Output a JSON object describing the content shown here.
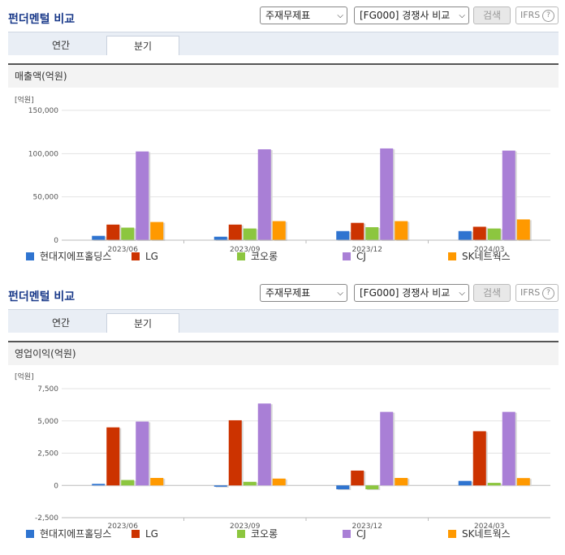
{
  "panels": [
    {
      "title": "펀더멘털 비교",
      "report_select": "주재무제표",
      "compare_select": "[FG000] 경쟁사 비교",
      "search_label": "검색",
      "ifrs_label": "IFRS",
      "help_glyph": "?",
      "tabs": {
        "annual": "연간",
        "quarter": "분기"
      },
      "section_title": "매출액(억원)"
    },
    {
      "title": "펀더멘털 비교",
      "report_select": "주재무제표",
      "compare_select": "[FG000] 경쟁사 비교",
      "search_label": "검색",
      "ifrs_label": "IFRS",
      "help_glyph": "?",
      "tabs": {
        "annual": "연간",
        "quarter": "분기"
      },
      "section_title": "영업이익(억원)"
    }
  ],
  "colors": {
    "현대지에프홀딩스": "#2f74d0",
    "LG": "#cc3300",
    "코오롱": "#8cc63f",
    "CJ": "#a97fd6",
    "SK네트웍스": "#ff9900"
  },
  "chart_data": [
    {
      "type": "bar",
      "unit_label": "[억원]",
      "categories": [
        "2023/06",
        "2023/09",
        "2023/12",
        "2024/03"
      ],
      "ylim": [
        0,
        150000
      ],
      "yticks": [
        0,
        50000,
        100000,
        150000
      ],
      "ytick_labels": [
        "0",
        "50,000",
        "100,000",
        "150,000"
      ],
      "legend_position": "bottom",
      "series": [
        {
          "name": "현대지에프홀딩스",
          "values": [
            5000,
            4000,
            10500,
            10500
          ]
        },
        {
          "name": "LG",
          "values": [
            18000,
            18000,
            20000,
            15500
          ]
        },
        {
          "name": "코오롱",
          "values": [
            14500,
            13500,
            15000,
            13500
          ]
        },
        {
          "name": "CJ",
          "values": [
            102500,
            105000,
            106000,
            103500
          ]
        },
        {
          "name": "SK네트웍스",
          "values": [
            21000,
            22000,
            22000,
            24000
          ]
        }
      ]
    },
    {
      "type": "bar",
      "unit_label": "[억원]",
      "categories": [
        "2023/06",
        "2023/09",
        "2023/12",
        "2024/03"
      ],
      "ylim": [
        -2500,
        7500
      ],
      "yticks": [
        -2500,
        0,
        2500,
        5000,
        7500
      ],
      "ytick_labels": [
        "-2,500",
        "0",
        "2,500",
        "5,000",
        "7,500"
      ],
      "legend_position": "bottom",
      "series": [
        {
          "name": "현대지에프홀딩스",
          "values": [
            120,
            -100,
            -300,
            350
          ]
        },
        {
          "name": "LG",
          "values": [
            4500,
            5050,
            1150,
            4200
          ]
        },
        {
          "name": "코오롱",
          "values": [
            420,
            280,
            -300,
            200
          ]
        },
        {
          "name": "CJ",
          "values": [
            4950,
            6350,
            5700,
            5700
          ]
        },
        {
          "name": "SK네트웍스",
          "values": [
            580,
            530,
            580,
            570
          ]
        }
      ]
    }
  ]
}
